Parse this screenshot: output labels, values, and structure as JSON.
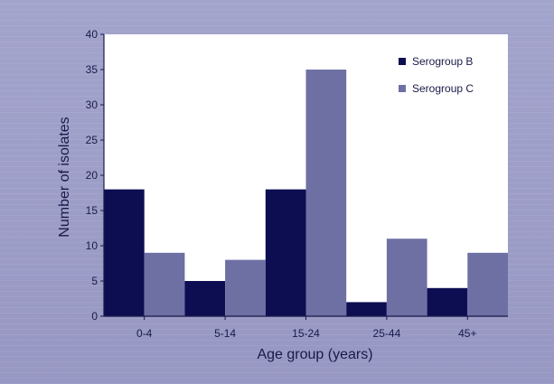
{
  "chart_data": {
    "type": "bar",
    "title": "",
    "xlabel": "Age group (years)",
    "ylabel": "Number of isolates",
    "categories": [
      "0-4",
      "5-14",
      "15-24",
      "25-44",
      "45+"
    ],
    "ylim": [
      0,
      40
    ],
    "yticks": [
      "0",
      "5",
      "10",
      "15",
      "20",
      "25",
      "30",
      "35",
      "40"
    ],
    "grid": false,
    "legend_position": "top-right",
    "series": [
      {
        "name": "Serogroup B",
        "color": "#0d0d52",
        "values": [
          18,
          5,
          18,
          2,
          4
        ]
      },
      {
        "name": "Serogroup C",
        "color": "#6e6fa3",
        "values": [
          9,
          8,
          35,
          11,
          9
        ]
      }
    ]
  }
}
